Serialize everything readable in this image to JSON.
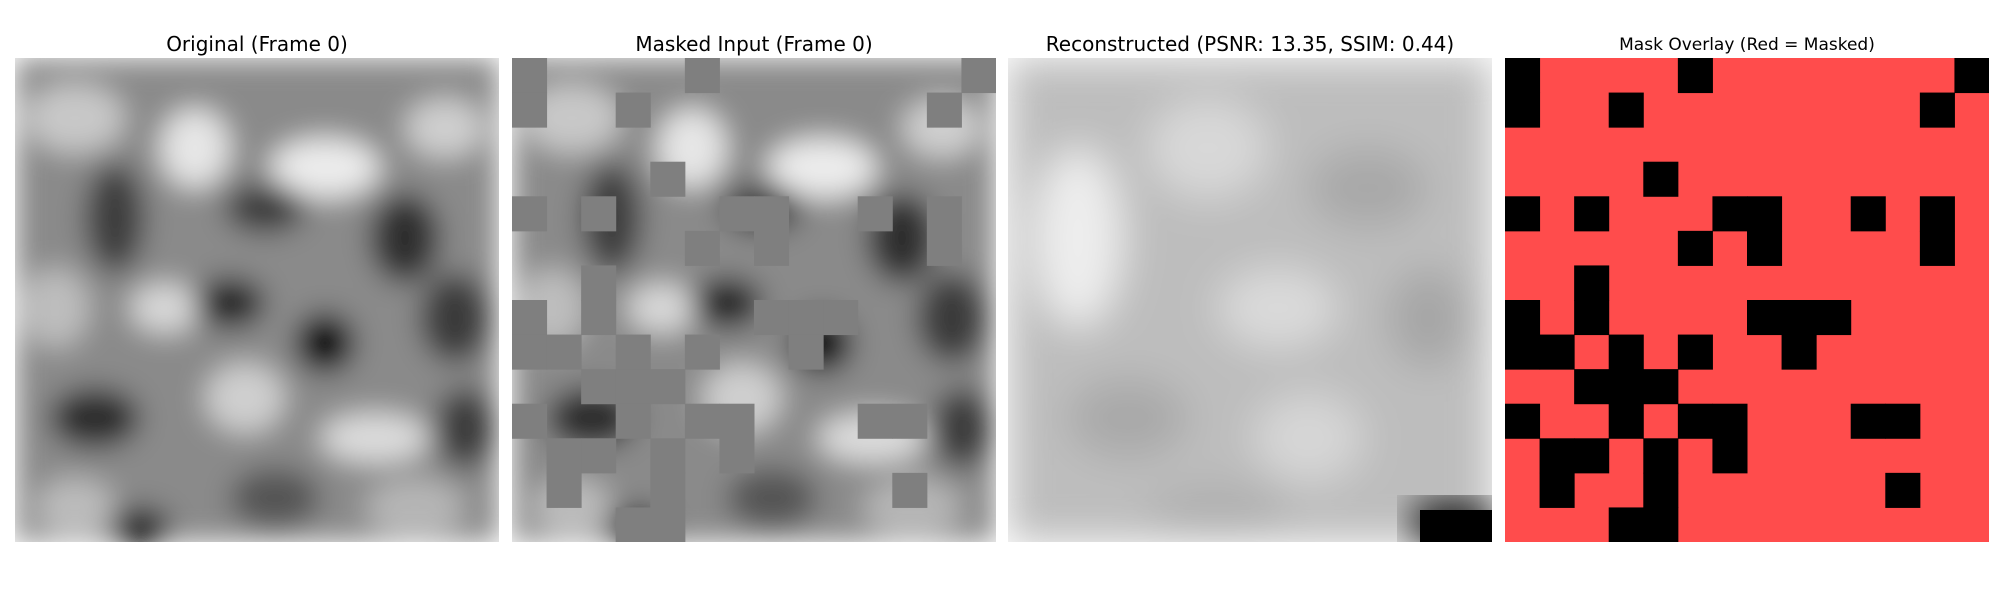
{
  "panels": [
    {
      "title": "Original (Frame 0)"
    },
    {
      "title": "Masked Input (Frame 0)"
    },
    {
      "title": "Reconstructed (PSNR: 13.35, SSIM: 0.44)"
    },
    {
      "title": "Mask Overlay (Red = Masked)"
    }
  ],
  "colors": {
    "mask_fill": "#7f7f7f",
    "overlay_masked": "#ff4c4c",
    "overlay_visible": "#000000"
  },
  "mask_grid": {
    "size": 14,
    "visible_patches": [
      [
        0,
        0
      ],
      [
        0,
        5
      ],
      [
        0,
        13
      ],
      [
        1,
        0
      ],
      [
        1,
        3
      ],
      [
        1,
        12
      ],
      [
        3,
        4
      ],
      [
        4,
        0
      ],
      [
        4,
        2
      ],
      [
        4,
        6
      ],
      [
        4,
        7
      ],
      [
        4,
        10
      ],
      [
        4,
        12
      ],
      [
        5,
        5
      ],
      [
        5,
        7
      ],
      [
        5,
        12
      ],
      [
        6,
        2
      ],
      [
        7,
        0
      ],
      [
        7,
        2
      ],
      [
        7,
        7
      ],
      [
        7,
        8
      ],
      [
        7,
        9
      ],
      [
        8,
        0
      ],
      [
        8,
        1
      ],
      [
        8,
        3
      ],
      [
        8,
        5
      ],
      [
        8,
        8
      ],
      [
        9,
        2
      ],
      [
        9,
        3
      ],
      [
        9,
        4
      ],
      [
        10,
        0
      ],
      [
        10,
        3
      ],
      [
        10,
        5
      ],
      [
        10,
        6
      ],
      [
        10,
        10
      ],
      [
        10,
        11
      ],
      [
        11,
        1
      ],
      [
        11,
        2
      ],
      [
        11,
        4
      ],
      [
        11,
        6
      ],
      [
        12,
        1
      ],
      [
        12,
        4
      ],
      [
        12,
        11
      ],
      [
        13,
        3
      ],
      [
        13,
        4
      ]
    ]
  }
}
